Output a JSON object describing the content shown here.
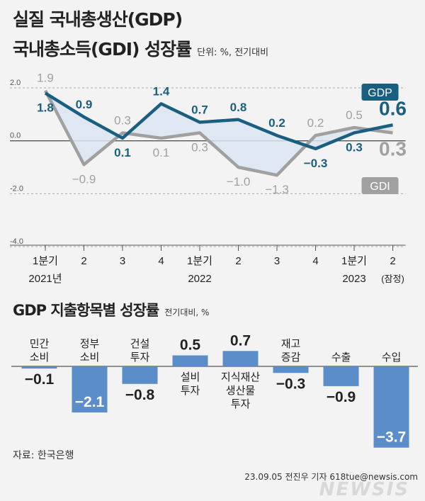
{
  "header": {
    "title_line1": "실질 국내총생산(GDP)",
    "title_line2": "국내총소득(GDI) 성장률",
    "unit": "단위: %, 전기대비"
  },
  "colors": {
    "gdp": "#1a5f80",
    "gdi": "#a0a0a0",
    "bar": "#5b8dc9",
    "fill": "#dbe4f1"
  },
  "chart_data": [
    {
      "type": "line",
      "x": [
        "1분기",
        "2",
        "3",
        "4",
        "1분기",
        "2",
        "3",
        "4",
        "1분기",
        "2"
      ],
      "x_year_labels": [
        {
          "index": 0,
          "label": "2021년"
        },
        {
          "index": 4,
          "label": "2022"
        },
        {
          "index": 8,
          "label": "2023"
        },
        {
          "index": 9,
          "label": "(잠정)"
        }
      ],
      "series": [
        {
          "name": "GDP",
          "values": [
            1.8,
            0.9,
            0.1,
            1.4,
            0.7,
            0.8,
            0.2,
            -0.3,
            0.3,
            0.6
          ]
        },
        {
          "name": "GDI",
          "values": [
            1.9,
            -0.9,
            0.3,
            0.1,
            0.3,
            -1.0,
            -1.3,
            0.2,
            0.5,
            0.3
          ]
        }
      ],
      "ylim": [
        -4.0,
        2.0
      ],
      "yticks": [
        "2.0",
        "0.0",
        "-2.0",
        "-4.0"
      ],
      "ytick_values": [
        2.0,
        0.0,
        -2.0,
        -4.0
      ],
      "value_labels": {
        "GDP": [
          "1.8",
          "0.9",
          "0.1",
          "1.4",
          "0.7",
          "0.8",
          "0.2",
          "−0.3",
          "0.3",
          "0.6"
        ],
        "GDI": [
          "1.9",
          "−0.9",
          "0.3",
          "0.1",
          "0.3",
          "−1.0",
          "−1.3",
          "0.2",
          "0.5",
          "0.3"
        ]
      },
      "legend": [
        "GDP",
        "GDI"
      ]
    },
    {
      "type": "bar",
      "title": "GDP 지출항목별 성장률",
      "unit": "전기대비, %",
      "categories": [
        [
          "민간",
          "소비"
        ],
        [
          "정부",
          "소비"
        ],
        [
          "건설",
          "투자"
        ],
        [
          "설비",
          "투자"
        ],
        [
          "지식재산",
          "생산물",
          "투자"
        ],
        [
          "재고",
          "증감"
        ],
        [
          "수출"
        ],
        [
          "수입"
        ]
      ],
      "values": [
        -0.1,
        -2.1,
        -0.8,
        0.5,
        0.7,
        -0.3,
        -0.9,
        -3.7
      ],
      "value_labels": [
        "−0.1",
        "−2.1",
        "−0.8",
        "0.5",
        "0.7",
        "−0.3",
        "−0.9",
        "−3.7"
      ]
    }
  ],
  "footer": {
    "source": "자료: 한국은행",
    "credit": "23.09.05 전진우 기자 618tue@newsis.com",
    "logo": "NEWSIS"
  }
}
